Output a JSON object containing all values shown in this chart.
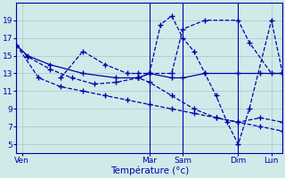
{
  "xlabel": "Température (°c)",
  "bg_color": "#d0eaea",
  "grid_color": "#a0c8c8",
  "line_color": "#0000aa",
  "xlim": [
    0,
    144
  ],
  "ylim": [
    4,
    21
  ],
  "yticks": [
    5,
    7,
    9,
    11,
    13,
    15,
    17,
    19
  ],
  "ytick_labels": [
    "5",
    "7",
    "9",
    "11",
    "13",
    "15",
    "17",
    "19"
  ],
  "vlines": [
    0,
    72,
    90,
    120,
    144
  ],
  "xtick_pos": [
    3,
    72,
    90,
    120,
    138
  ],
  "xtick_labels": [
    "Ven",
    "Mar",
    "Sam",
    "Dim",
    "Lun"
  ],
  "series": [
    {
      "x": [
        0,
        6,
        18,
        36,
        54,
        66,
        72,
        84,
        90,
        102,
        120,
        132,
        144
      ],
      "y": [
        16.2,
        15.0,
        14.0,
        13.0,
        12.5,
        12.5,
        13.0,
        12.5,
        12.5,
        13.0,
        13.0,
        13.0,
        13.0
      ],
      "solid": true
    },
    {
      "x": [
        0,
        6,
        18,
        30,
        42,
        54,
        66,
        72,
        84,
        96,
        108,
        120,
        132,
        144
      ],
      "y": [
        16.2,
        14.9,
        13.5,
        12.5,
        11.8,
        12.0,
        12.5,
        12.0,
        10.5,
        9.0,
        8.0,
        7.5,
        8.0,
        7.5
      ],
      "solid": false
    },
    {
      "x": [
        0,
        12,
        24,
        36,
        48,
        60,
        72,
        84,
        96,
        108,
        120,
        132,
        144
      ],
      "y": [
        16.2,
        12.5,
        11.5,
        11.0,
        10.5,
        10.0,
        9.5,
        9.0,
        8.5,
        8.0,
        7.5,
        7.0,
        6.5
      ],
      "solid": false
    },
    {
      "x": [
        24,
        36,
        48,
        60,
        66,
        72,
        78,
        84,
        90,
        96,
        102,
        108,
        114,
        120,
        126,
        138,
        144
      ],
      "y": [
        12.5,
        15.5,
        14.0,
        13.0,
        13.0,
        13.0,
        18.5,
        19.5,
        17.0,
        15.5,
        13.0,
        10.5,
        7.5,
        5.0,
        9.0,
        19.0,
        13.0
      ],
      "solid": false
    },
    {
      "x": [
        66,
        72,
        84,
        90,
        102,
        120,
        126,
        138,
        144
      ],
      "y": [
        12.5,
        13.0,
        13.0,
        18.0,
        19.0,
        19.0,
        16.5,
        13.0,
        13.0
      ],
      "solid": false
    }
  ]
}
